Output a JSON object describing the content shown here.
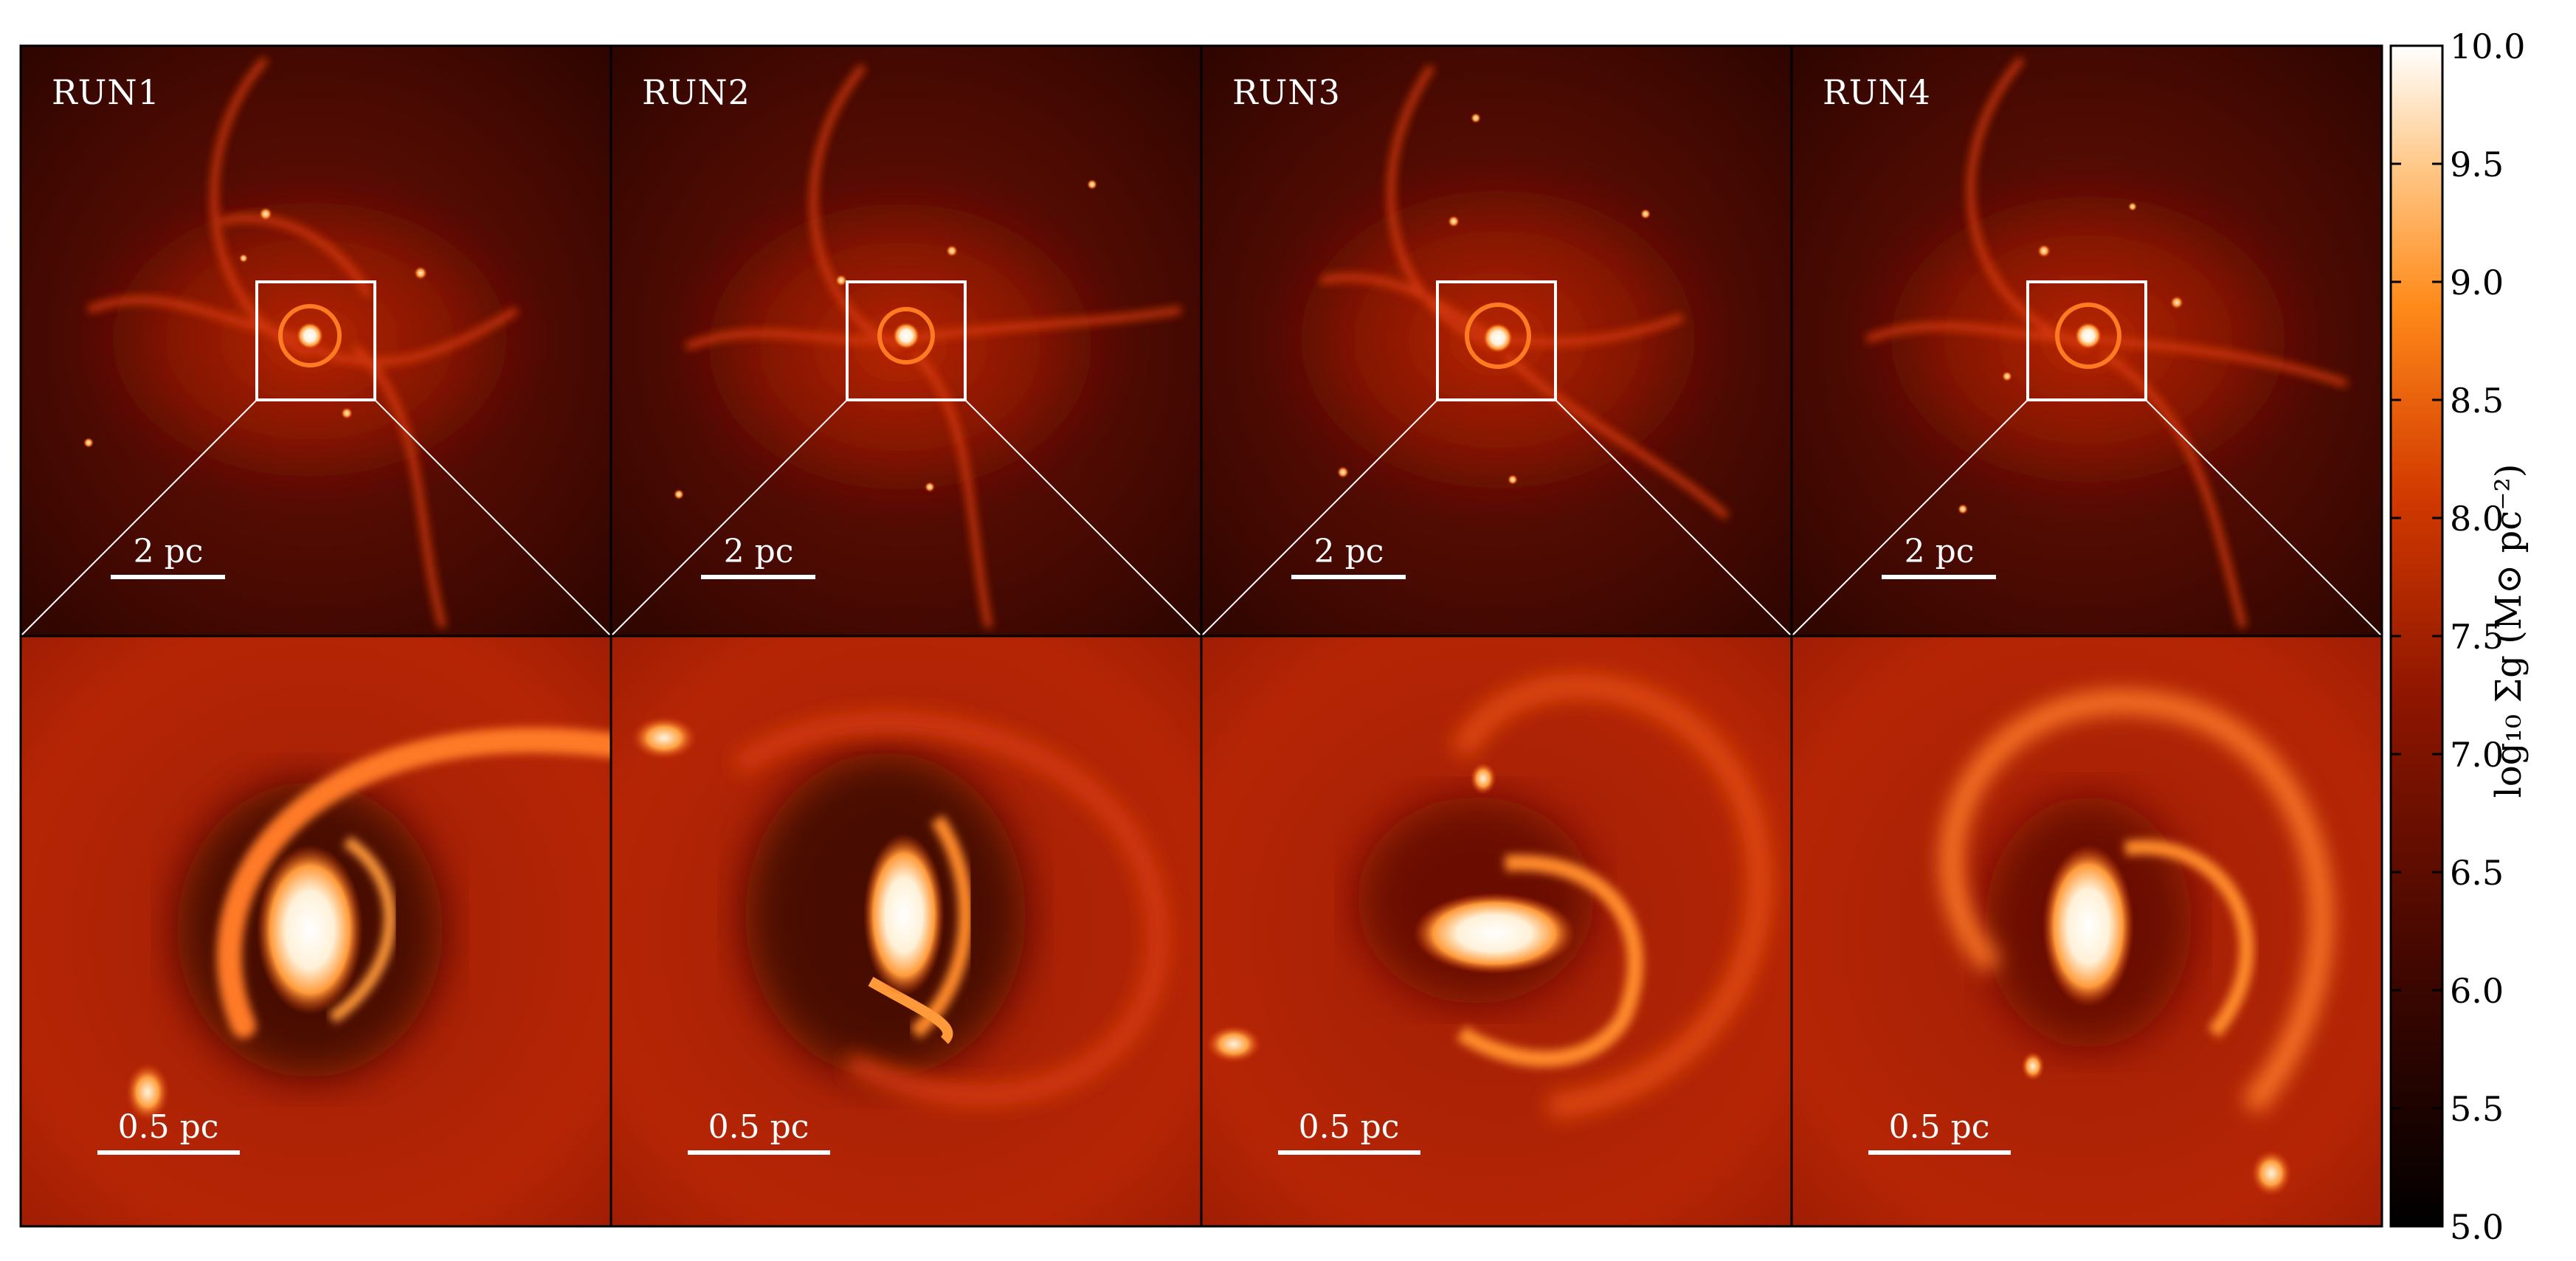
{
  "panels": {
    "top": [
      {
        "run_label": "RUN1",
        "scale_bar_label": "2 pc"
      },
      {
        "run_label": "RUN2",
        "scale_bar_label": "2 pc"
      },
      {
        "run_label": "RUN3",
        "scale_bar_label": "2 pc"
      },
      {
        "run_label": "RUN4",
        "scale_bar_label": "2 pc"
      }
    ],
    "bottom": [
      {
        "scale_bar_label": "0.5 pc"
      },
      {
        "scale_bar_label": "0.5 pc"
      },
      {
        "scale_bar_label": "0.5 pc"
      },
      {
        "scale_bar_label": "0.5 pc"
      }
    ]
  },
  "colorbar": {
    "label": "log₁₀ Σg (M⊙ pc⁻²)",
    "ticks": [
      "10.0",
      "9.5",
      "9.0",
      "8.5",
      "8.0",
      "7.5",
      "7.0",
      "6.5",
      "6.0",
      "5.5",
      "5.0"
    ],
    "range": [
      5.0,
      10.0
    ],
    "colormap": "gist_heat",
    "colors": {
      "low": "#000000",
      "mid_low": "#5a0a00",
      "mid": "#c81e00",
      "mid_high": "#ff8a1a",
      "high": "#ffffff"
    }
  }
}
